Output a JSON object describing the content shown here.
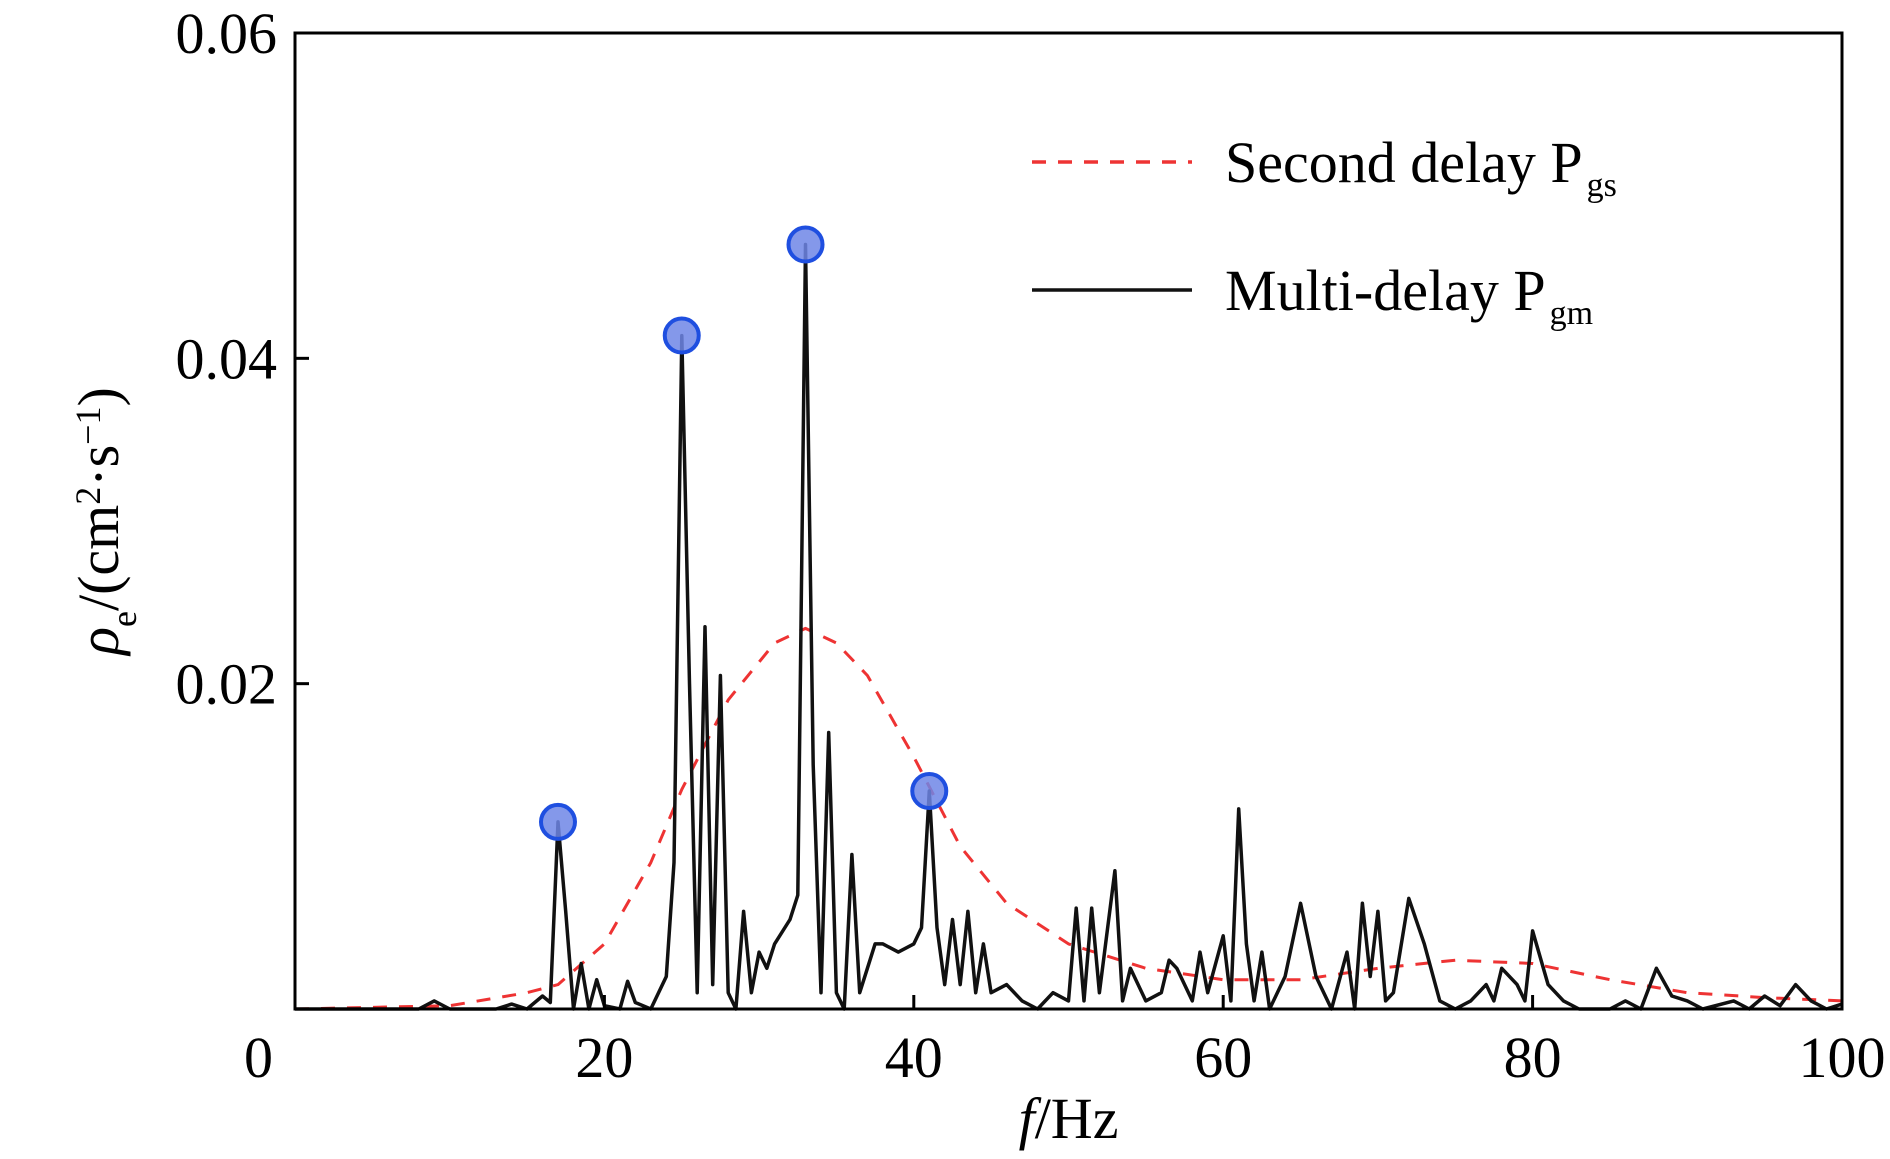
{
  "chart_data": {
    "type": "line",
    "x_label": [
      "f",
      "/Hz"
    ],
    "y_label": [
      "ρ",
      "e",
      "/(cm",
      "2",
      "·s",
      "−1",
      ")"
    ],
    "xlim": [
      0,
      100
    ],
    "ylim": [
      0,
      0.06
    ],
    "xticks": [
      0,
      20,
      40,
      60,
      80,
      100
    ],
    "yticks": [
      0.02,
      0.04,
      0.06
    ],
    "legend": "upper right",
    "series": [
      {
        "name": "Second delay P",
        "subscript": "gs",
        "color": "#ee3333",
        "dashed": true,
        "x": [
          0,
          10,
          15,
          17,
          20,
          23,
          25,
          28,
          31,
          33,
          35,
          37,
          40,
          43,
          46,
          50,
          55,
          60,
          65,
          70,
          75,
          80,
          85,
          90,
          95,
          100
        ],
        "values": [
          0,
          0.0002,
          0.001,
          0.0015,
          0.004,
          0.009,
          0.0135,
          0.019,
          0.0225,
          0.0234,
          0.0225,
          0.0205,
          0.0155,
          0.01,
          0.0065,
          0.004,
          0.0025,
          0.0018,
          0.0018,
          0.0025,
          0.003,
          0.0028,
          0.0018,
          0.001,
          0.0007,
          0.0005
        ]
      },
      {
        "name": "Multi-delay P",
        "subscript": "gm",
        "color": "#111111",
        "dashed": false,
        "x": [
          0,
          8,
          9,
          10,
          13,
          14,
          15,
          16,
          16.5,
          17,
          17.5,
          18,
          18.5,
          19,
          19.5,
          20,
          21,
          21.5,
          22,
          23,
          24,
          24.5,
          25,
          25.5,
          26,
          26.5,
          27,
          27.5,
          28,
          28.5,
          29,
          29.5,
          30,
          30.5,
          31,
          32,
          32.5,
          33,
          33.5,
          34,
          34.5,
          35,
          35.5,
          36,
          36.5,
          37,
          37.5,
          38,
          39,
          40,
          40.5,
          41,
          41.5,
          42,
          42.5,
          43,
          43.5,
          44,
          44.5,
          45,
          46,
          47,
          48,
          49,
          50,
          50.5,
          51,
          51.5,
          52,
          53,
          53.5,
          54,
          55,
          56,
          56.5,
          57,
          58,
          58.5,
          59,
          60,
          60.5,
          61,
          61.5,
          62,
          62.5,
          63,
          64,
          65,
          66,
          67,
          68,
          68.5,
          69,
          69.5,
          70,
          70.5,
          71,
          72,
          73,
          74,
          75,
          76,
          77,
          77.5,
          78,
          79,
          79.5,
          80,
          81,
          82,
          83,
          85,
          86,
          87,
          88,
          89,
          90,
          91,
          93,
          94,
          95,
          96,
          97,
          98,
          99,
          100
        ],
        "values": [
          0,
          0,
          0.0005,
          0,
          0,
          0.0003,
          0,
          0.0008,
          0.0004,
          0.0115,
          0.006,
          0,
          0.0028,
          0,
          0.0018,
          0.0002,
          0,
          0.0017,
          0.0004,
          0,
          0.002,
          0.009,
          0.0414,
          0.02,
          0.001,
          0.0235,
          0.0015,
          0.0205,
          0.001,
          0,
          0.006,
          0.001,
          0.0035,
          0.0025,
          0.004,
          0.0055,
          0.007,
          0.047,
          0.015,
          0.001,
          0.017,
          0.001,
          0,
          0.0095,
          0.001,
          0.0025,
          0.004,
          0.004,
          0.0035,
          0.004,
          0.005,
          0.0134,
          0.005,
          0.0015,
          0.0055,
          0.0015,
          0.006,
          0.001,
          0.004,
          0.001,
          0.0015,
          0.0005,
          0,
          0.001,
          0.0005,
          0.0062,
          0.0005,
          0.0062,
          0.001,
          0.0085,
          0.0005,
          0.0025,
          0.0005,
          0.001,
          0.003,
          0.0025,
          0.0005,
          0.0035,
          0.001,
          0.0045,
          0.0005,
          0.0123,
          0.004,
          0.0005,
          0.0035,
          0,
          0.002,
          0.0065,
          0.002,
          0,
          0.0035,
          0,
          0.0065,
          0.002,
          0.006,
          0.0005,
          0.001,
          0.0068,
          0.004,
          0.0005,
          0,
          0.0005,
          0.0015,
          0.0005,
          0.0025,
          0.0015,
          0.0005,
          0.0048,
          0.0015,
          0.0005,
          0,
          0,
          0.0005,
          0,
          0.0025,
          0.0008,
          0.0005,
          0,
          0.0005,
          0,
          0.0008,
          0.0002,
          0.0015,
          0.0005,
          0,
          0.0003
        ]
      }
    ],
    "markers": {
      "color": "#6f86e6",
      "x": [
        17,
        25,
        33,
        41
      ],
      "values": [
        0.0115,
        0.0414,
        0.047,
        0.0134
      ]
    }
  }
}
